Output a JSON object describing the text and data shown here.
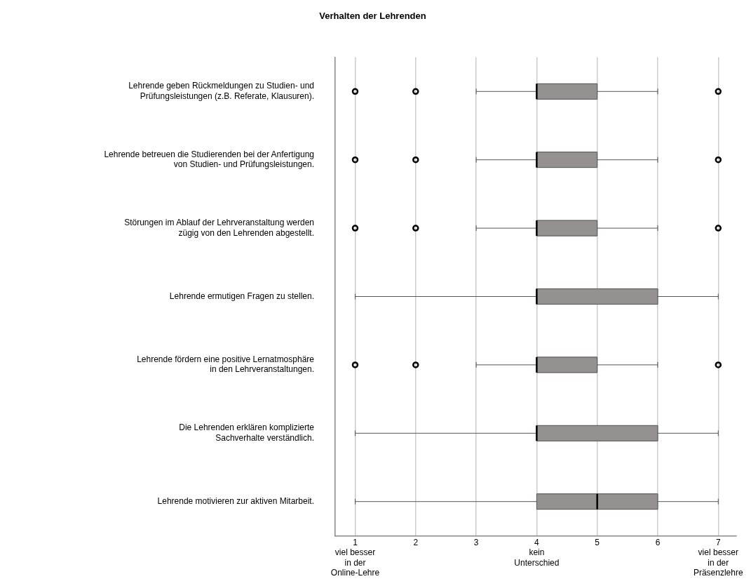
{
  "chart_data": {
    "type": "box",
    "orientation": "horizontal",
    "title": "Verhalten der Lehrenden",
    "categories": [
      "Lehrende geben Rückmeldungen zu Studien- und\nPrüfungsleistungen (z.B. Referate, Klausuren).",
      "Lehrende betreuen die Studierenden bei der Anfertigung\nvon Studien- und Prüfungsleistungen.",
      "Störungen im Ablauf der Lehrveranstaltung werden\nzügig von den Lehrenden abgestellt.",
      "Lehrende ermutigen Fragen zu stellen.",
      "Lehrende fördern eine positive Lernatmosphäre\nin den Lehrveranstaltungen.",
      "Die Lehrenden erklären komplizierte\nSachverhalte verständlich.",
      "Lehrende motivieren zur aktiven Mitarbeit."
    ],
    "series": [
      {
        "color": "#959191",
        "boxes": [
          {
            "low": 3,
            "q1": 4,
            "median": 4,
            "q3": 5,
            "high": 6,
            "outliers": [
              1,
              2,
              7
            ]
          },
          {
            "low": 3,
            "q1": 4,
            "median": 4,
            "q3": 5,
            "high": 6,
            "outliers": [
              1,
              2,
              7
            ]
          },
          {
            "low": 3,
            "q1": 4,
            "median": 4,
            "q3": 5,
            "high": 6,
            "outliers": [
              1,
              2,
              7
            ]
          },
          {
            "low": 1,
            "q1": 4,
            "median": 4,
            "q3": 6,
            "high": 7
          },
          {
            "low": 3,
            "q1": 4,
            "median": 4,
            "q3": 5,
            "high": 6,
            "outliers": [
              1,
              2,
              7
            ]
          },
          {
            "low": 1,
            "q1": 4,
            "median": 4,
            "q3": 6,
            "high": 7
          },
          {
            "low": 1,
            "q1": 4,
            "median": 5,
            "q3": 6,
            "high": 7
          }
        ]
      }
    ],
    "xlim": [
      0.67,
      7.3
    ],
    "xticks": [
      {
        "value": 1,
        "label": "1\nviel besser\nin der\nOnline-Lehre"
      },
      2,
      3,
      {
        "value": 4,
        "label": "4\nkein\nUnterschied"
      },
      5,
      6,
      {
        "value": 7,
        "label": "7\nviel besser\nin der\nPräsenzlehre"
      }
    ],
    "grid": "x"
  }
}
